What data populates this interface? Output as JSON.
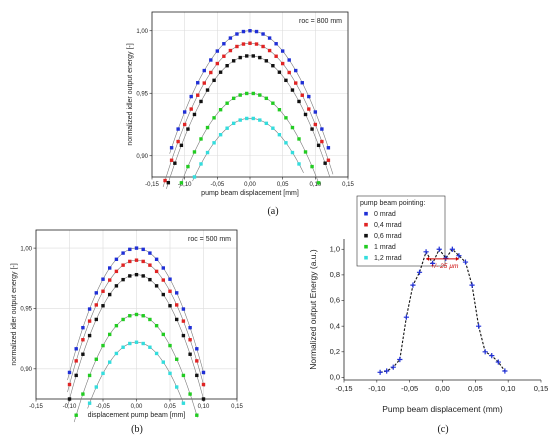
{
  "chart_data": [
    {
      "id": "a",
      "type": "scatter",
      "panel_label": "(a)",
      "annotation": "roc = 800 mm",
      "xlabel": "pump beam displacement [mm]",
      "ylabel": "normalized idler output energy [-]",
      "xlim": [
        -0.15,
        0.15
      ],
      "ylim": [
        0.883,
        1.015
      ],
      "xticks": [
        "-0,15",
        "-0,10",
        "-0,05",
        "0,00",
        "0,05",
        "0,10",
        "0,15"
      ],
      "yticks": [
        "0,90",
        "0,95",
        "1,00"
      ],
      "ytick_values": [
        0.9,
        0.95,
        1.0
      ],
      "grid": true,
      "legend_title": "pump beam pointing:",
      "legend_position": "outside-right",
      "series": [
        {
          "name": "0 mrad",
          "color": "#1f2fd6",
          "peak": 1.0,
          "xmin": -0.12,
          "xmax": 0.12
        },
        {
          "name": "0,4 mrad",
          "color": "#e02424",
          "peak": 0.99,
          "xmin": -0.13,
          "xmax": 0.125
        },
        {
          "name": "0,6 mrad",
          "color": "#111111",
          "peak": 0.98,
          "xmin": -0.125,
          "xmax": 0.12
        },
        {
          "name": "1 mrad",
          "color": "#22cc22",
          "peak": 0.95,
          "xmin": -0.105,
          "xmax": 0.105
        },
        {
          "name": "1,2 mrad",
          "color": "#33dddd",
          "peak": 0.93,
          "xmin": -0.085,
          "xmax": 0.08
        }
      ],
      "curvature": 6.5,
      "step": 0.01
    },
    {
      "id": "b",
      "type": "scatter",
      "panel_label": "(b)",
      "annotation": "roc = 500 mm",
      "xlabel": "displacement pump beam [mm]",
      "ylabel": "normalized idler output energy [-]",
      "xlim": [
        -0.15,
        0.15
      ],
      "ylim": [
        0.875,
        1.015
      ],
      "xticks": [
        "-0,15",
        "-0,10",
        "-0,05",
        "0,00",
        "0,05",
        "0,10",
        "0,15"
      ],
      "yticks": [
        "0,90",
        "0,95",
        "1,00"
      ],
      "ytick_values": [
        0.9,
        0.95,
        1.0
      ],
      "grid": true,
      "series": [
        {
          "name": "0 mrad",
          "color": "#1f2fd6",
          "peak": 1.0,
          "xmin": -0.1,
          "xmax": 0.1
        },
        {
          "name": "0,4 mrad",
          "color": "#e02424",
          "peak": 0.99,
          "xmin": -0.1,
          "xmax": 0.1
        },
        {
          "name": "0,6 mrad",
          "color": "#111111",
          "peak": 0.978,
          "xmin": -0.1,
          "xmax": 0.1
        },
        {
          "name": "1 mrad",
          "color": "#22cc22",
          "peak": 0.945,
          "xmin": -0.09,
          "xmax": 0.09
        },
        {
          "name": "1,2 mrad",
          "color": "#33dddd",
          "peak": 0.922,
          "xmin": -0.07,
          "xmax": 0.07
        }
      ],
      "curvature": 10.3,
      "step": 0.01
    },
    {
      "id": "c",
      "type": "line",
      "panel_label": "(c)",
      "xlabel": "Pump beam displacement (mm)",
      "ylabel": "Normalized output Energy (a.u.)",
      "annotation": "+/- 25 µm",
      "xlim": [
        -0.15,
        0.15
      ],
      "ylim": [
        -0.02,
        1.08
      ],
      "xticks": [
        "-0,15",
        "-0,10",
        "-0,05",
        "0,00",
        "0,05",
        "0,10",
        "0,15"
      ],
      "yticks": [
        "0,0",
        "0,2",
        "0,4",
        "0,6",
        "0,8",
        "1,0"
      ],
      "ytick_values": [
        0.0,
        0.2,
        0.4,
        0.6,
        0.8,
        1.0
      ],
      "grid": false,
      "color": "#1f2fd6",
      "x": [
        -0.095,
        -0.085,
        -0.075,
        -0.065,
        -0.055,
        -0.045,
        -0.035,
        -0.025,
        -0.015,
        -0.005,
        0.005,
        0.015,
        0.025,
        0.035,
        0.045,
        0.055,
        0.065,
        0.075,
        0.085,
        0.095
      ],
      "y": [
        0.04,
        0.05,
        0.08,
        0.14,
        0.47,
        0.72,
        0.82,
        0.98,
        0.89,
        1.0,
        0.93,
        1.0,
        0.95,
        0.9,
        0.72,
        0.4,
        0.2,
        0.17,
        0.12,
        0.05
      ]
    }
  ]
}
